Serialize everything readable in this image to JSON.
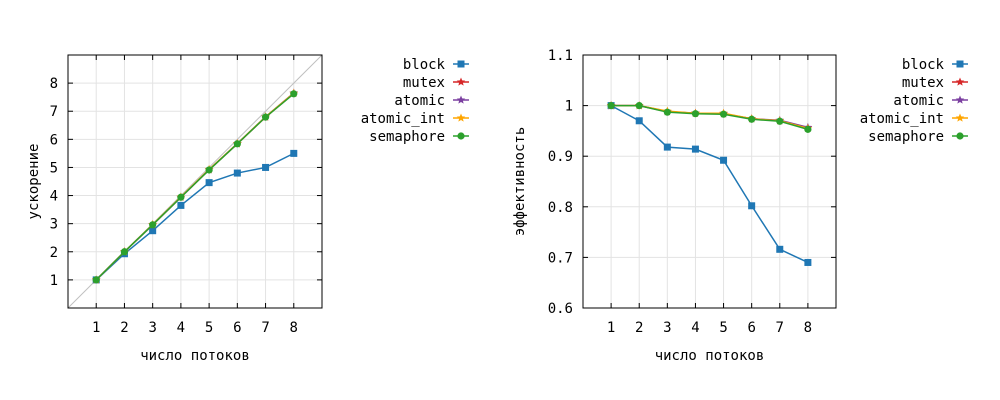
{
  "chart_data": [
    {
      "type": "line",
      "title": "",
      "xlabel": "число потоков",
      "ylabel": "ускорение",
      "xlim": [
        0,
        9
      ],
      "ylim": [
        0,
        9
      ],
      "xticks": [
        1,
        2,
        3,
        4,
        5,
        6,
        7,
        8
      ],
      "yticks": [
        1,
        2,
        3,
        4,
        5,
        6,
        7,
        8
      ],
      "ytick_labels": [
        "1",
        "2",
        "3",
        "4",
        "5",
        "6",
        "7",
        "8"
      ],
      "grid": true,
      "legend_position": "outside-right",
      "reference_line": "y = x",
      "x": [
        1,
        2,
        3,
        4,
        5,
        6,
        7,
        8
      ],
      "series": [
        {
          "name": "block",
          "values": [
            1,
            1.93,
            2.75,
            3.65,
            4.46,
            4.8,
            5.0,
            5.5
          ],
          "color": "#1f77b4",
          "marker": "square"
        },
        {
          "name": "mutex",
          "values": [
            1,
            2.0,
            2.96,
            3.94,
            4.92,
            5.84,
            6.79,
            7.64
          ],
          "color": "#d62728",
          "marker": "star"
        },
        {
          "name": "atomic",
          "values": [
            1,
            2.0,
            2.96,
            3.94,
            4.92,
            5.85,
            6.8,
            7.65
          ],
          "color": "#7b3fa0",
          "marker": "star"
        },
        {
          "name": "atomic_int",
          "values": [
            1,
            2.0,
            2.97,
            3.95,
            4.93,
            5.85,
            6.8,
            7.64
          ],
          "color": "#ffa500",
          "marker": "star"
        },
        {
          "name": "semaphore",
          "values": [
            1,
            2.0,
            2.96,
            3.94,
            4.91,
            5.84,
            6.79,
            7.62
          ],
          "color": "#2ca02c",
          "marker": "circle"
        }
      ]
    },
    {
      "type": "line",
      "title": "",
      "xlabel": "число потоков",
      "ylabel": "эффективность",
      "xlim": [
        0,
        9
      ],
      "ylim": [
        0.6,
        1.1
      ],
      "xticks": [
        1,
        2,
        3,
        4,
        5,
        6,
        7,
        8
      ],
      "yticks": [
        0.6,
        0.7,
        0.8,
        0.9,
        1.0,
        1.1
      ],
      "ytick_labels": [
        "0.6",
        "0.7",
        "0.8",
        "0.9",
        "1",
        "1.1"
      ],
      "grid": true,
      "legend_position": "outside-right",
      "x": [
        1,
        2,
        3,
        4,
        5,
        6,
        7,
        8
      ],
      "series": [
        {
          "name": "block",
          "values": [
            1.0,
            0.97,
            0.918,
            0.914,
            0.892,
            0.802,
            0.716,
            0.69
          ],
          "color": "#1f77b4",
          "marker": "square"
        },
        {
          "name": "mutex",
          "values": [
            1.0,
            1.0,
            0.988,
            0.985,
            0.984,
            0.974,
            0.97,
            0.956
          ],
          "color": "#d62728",
          "marker": "star"
        },
        {
          "name": "atomic",
          "values": [
            1.0,
            1.0,
            0.988,
            0.985,
            0.984,
            0.974,
            0.971,
            0.957
          ],
          "color": "#7b3fa0",
          "marker": "star"
        },
        {
          "name": "atomic_int",
          "values": [
            1.0,
            1.0,
            0.989,
            0.985,
            0.985,
            0.974,
            0.97,
            0.955
          ],
          "color": "#ffa500",
          "marker": "star"
        },
        {
          "name": "semaphore",
          "values": [
            1.0,
            1.0,
            0.987,
            0.984,
            0.983,
            0.973,
            0.969,
            0.953
          ],
          "color": "#2ca02c",
          "marker": "circle"
        }
      ]
    }
  ]
}
